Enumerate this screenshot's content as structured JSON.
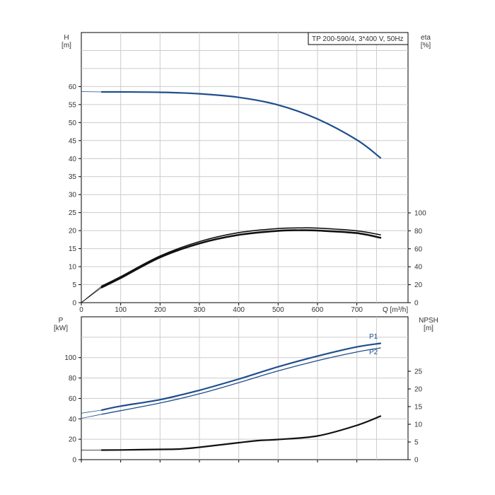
{
  "chart_data": [
    {
      "type": "line",
      "legend_box": "TP 200-590/4, 3*400 V, 50Hz",
      "left_axis": {
        "label_line1": "H",
        "label_line2": "[m]",
        "range": [
          0,
          75
        ],
        "ticks": [
          0,
          5,
          10,
          15,
          20,
          25,
          30,
          35,
          40,
          45,
          50,
          55,
          60
        ]
      },
      "right_axis": {
        "label_line1": "eta",
        "label_line2": "[%]",
        "range": [
          0,
          100
        ],
        "ticks": [
          0,
          20,
          40,
          60,
          80,
          100
        ]
      },
      "x_axis": {
        "label": "Q [m³/h]",
        "range": [
          0,
          830
        ],
        "ticks": [
          0,
          100,
          200,
          300,
          400,
          500,
          600,
          700
        ]
      },
      "grid": true,
      "series": [
        {
          "key": "head",
          "color": "#1f4e8c",
          "axis": "left",
          "points": [
            [
              0,
              58.6
            ],
            [
              52,
              58.5
            ],
            [
              100,
              58.5
            ],
            [
              200,
              58.4
            ],
            [
              300,
              58.0
            ],
            [
              400,
              57.0
            ],
            [
              500,
              54.9
            ],
            [
              600,
              51.0
            ],
            [
              700,
              45.2
            ],
            [
              760,
              40.2
            ]
          ]
        },
        {
          "key": "eta_upper",
          "color": "#111111",
          "axis": "right",
          "points": [
            [
              0,
              0
            ],
            [
              52,
              18.5
            ],
            [
              100,
              29
            ],
            [
              200,
              52
            ],
            [
              300,
              68
            ],
            [
              400,
              78
            ],
            [
              500,
              82.5
            ],
            [
              560,
              83.2
            ],
            [
              600,
              83
            ],
            [
              700,
              80
            ],
            [
              760,
              75.5
            ]
          ]
        },
        {
          "key": "eta_lower",
          "color": "#111111",
          "axis": "right",
          "points": [
            [
              0,
              0
            ],
            [
              52,
              17
            ],
            [
              100,
              27.5
            ],
            [
              200,
              50.5
            ],
            [
              300,
              66
            ],
            [
              400,
              75.5
            ],
            [
              500,
              80
            ],
            [
              560,
              80.6
            ],
            [
              600,
              80.3
            ],
            [
              700,
              77.5
            ],
            [
              760,
              72.3
            ]
          ]
        }
      ]
    },
    {
      "type": "line",
      "left_axis": {
        "label_line1": "P",
        "label_line2": "[kW]",
        "range": [
          0,
          140
        ],
        "ticks": [
          0,
          20,
          40,
          60,
          80,
          100
        ]
      },
      "right_axis": {
        "label_line1": "NPSH",
        "label_line2": "[m]",
        "range": [
          0,
          35
        ],
        "ticks": [
          0,
          5,
          10,
          15,
          20,
          25
        ]
      },
      "x_axis": {
        "range": [
          0,
          830
        ],
        "ticks": [
          0,
          100,
          200,
          300,
          400,
          500,
          600,
          700
        ]
      },
      "grid": true,
      "series": [
        {
          "key": "p1",
          "name": "P1",
          "color": "#1f4e8c",
          "axis": "left",
          "points": [
            [
              0,
              45.5
            ],
            [
              52,
              48.6
            ],
            [
              100,
              52.5
            ],
            [
              200,
              58.8
            ],
            [
              300,
              68
            ],
            [
              400,
              79
            ],
            [
              500,
              91
            ],
            [
              600,
              101.5
            ],
            [
              700,
              110.5
            ],
            [
              760,
              114
            ]
          ]
        },
        {
          "key": "p2",
          "name": "P2",
          "color": "#1f4e8c",
          "axis": "left",
          "points": [
            [
              0,
              40.5
            ],
            [
              52,
              44.5
            ],
            [
              100,
              48
            ],
            [
              200,
              55.5
            ],
            [
              300,
              64.5
            ],
            [
              400,
              75.5
            ],
            [
              500,
              87
            ],
            [
              600,
              97
            ],
            [
              700,
              105.5
            ],
            [
              760,
              109.5
            ]
          ]
        },
        {
          "key": "npsh",
          "color": "#111111",
          "axis": "right",
          "points": [
            [
              0,
              2.7
            ],
            [
              52,
              2.7
            ],
            [
              100,
              2.75
            ],
            [
              200,
              2.9
            ],
            [
              250,
              3.0
            ],
            [
              300,
              3.5
            ],
            [
              400,
              4.8
            ],
            [
              450,
              5.4
            ],
            [
              500,
              5.7
            ],
            [
              600,
              6.7
            ],
            [
              700,
              9.7
            ],
            [
              760,
              12.3
            ]
          ]
        }
      ]
    }
  ]
}
